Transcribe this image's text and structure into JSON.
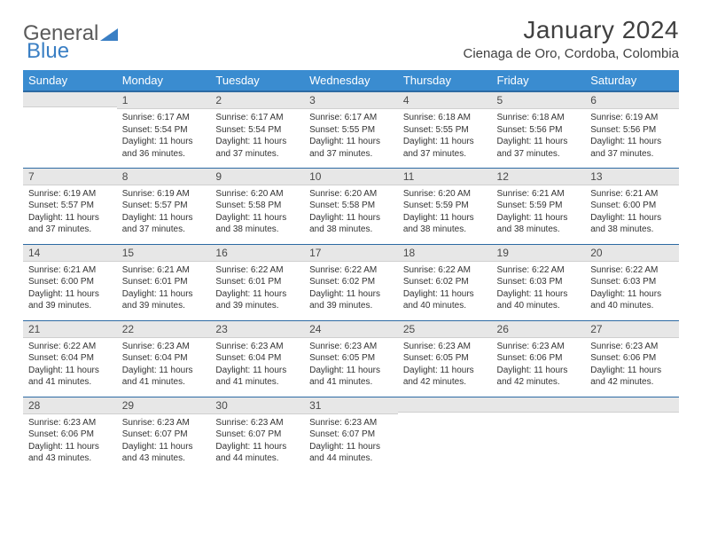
{
  "logo": {
    "text1": "General",
    "text2": "Blue"
  },
  "title": "January 2024",
  "location": "Cienaga de Oro, Cordoba, Colombia",
  "colors": {
    "header_bg": "#3a8cd0",
    "header_text": "#ffffff",
    "rule": "#2d6aa3",
    "daynum_bg": "#e7e7e7",
    "body_text": "#333333",
    "logo_gray": "#5a5a5a",
    "logo_blue": "#3a7fc4"
  },
  "weekdays": [
    "Sunday",
    "Monday",
    "Tuesday",
    "Wednesday",
    "Thursday",
    "Friday",
    "Saturday"
  ],
  "grid": [
    [
      null,
      {
        "n": "1",
        "sr": "6:17 AM",
        "ss": "5:54 PM",
        "dl": "11 hours and 36 minutes."
      },
      {
        "n": "2",
        "sr": "6:17 AM",
        "ss": "5:54 PM",
        "dl": "11 hours and 37 minutes."
      },
      {
        "n": "3",
        "sr": "6:17 AM",
        "ss": "5:55 PM",
        "dl": "11 hours and 37 minutes."
      },
      {
        "n": "4",
        "sr": "6:18 AM",
        "ss": "5:55 PM",
        "dl": "11 hours and 37 minutes."
      },
      {
        "n": "5",
        "sr": "6:18 AM",
        "ss": "5:56 PM",
        "dl": "11 hours and 37 minutes."
      },
      {
        "n": "6",
        "sr": "6:19 AM",
        "ss": "5:56 PM",
        "dl": "11 hours and 37 minutes."
      }
    ],
    [
      {
        "n": "7",
        "sr": "6:19 AM",
        "ss": "5:57 PM",
        "dl": "11 hours and 37 minutes."
      },
      {
        "n": "8",
        "sr": "6:19 AM",
        "ss": "5:57 PM",
        "dl": "11 hours and 37 minutes."
      },
      {
        "n": "9",
        "sr": "6:20 AM",
        "ss": "5:58 PM",
        "dl": "11 hours and 38 minutes."
      },
      {
        "n": "10",
        "sr": "6:20 AM",
        "ss": "5:58 PM",
        "dl": "11 hours and 38 minutes."
      },
      {
        "n": "11",
        "sr": "6:20 AM",
        "ss": "5:59 PM",
        "dl": "11 hours and 38 minutes."
      },
      {
        "n": "12",
        "sr": "6:21 AM",
        "ss": "5:59 PM",
        "dl": "11 hours and 38 minutes."
      },
      {
        "n": "13",
        "sr": "6:21 AM",
        "ss": "6:00 PM",
        "dl": "11 hours and 38 minutes."
      }
    ],
    [
      {
        "n": "14",
        "sr": "6:21 AM",
        "ss": "6:00 PM",
        "dl": "11 hours and 39 minutes."
      },
      {
        "n": "15",
        "sr": "6:21 AM",
        "ss": "6:01 PM",
        "dl": "11 hours and 39 minutes."
      },
      {
        "n": "16",
        "sr": "6:22 AM",
        "ss": "6:01 PM",
        "dl": "11 hours and 39 minutes."
      },
      {
        "n": "17",
        "sr": "6:22 AM",
        "ss": "6:02 PM",
        "dl": "11 hours and 39 minutes."
      },
      {
        "n": "18",
        "sr": "6:22 AM",
        "ss": "6:02 PM",
        "dl": "11 hours and 40 minutes."
      },
      {
        "n": "19",
        "sr": "6:22 AM",
        "ss": "6:03 PM",
        "dl": "11 hours and 40 minutes."
      },
      {
        "n": "20",
        "sr": "6:22 AM",
        "ss": "6:03 PM",
        "dl": "11 hours and 40 minutes."
      }
    ],
    [
      {
        "n": "21",
        "sr": "6:22 AM",
        "ss": "6:04 PM",
        "dl": "11 hours and 41 minutes."
      },
      {
        "n": "22",
        "sr": "6:23 AM",
        "ss": "6:04 PM",
        "dl": "11 hours and 41 minutes."
      },
      {
        "n": "23",
        "sr": "6:23 AM",
        "ss": "6:04 PM",
        "dl": "11 hours and 41 minutes."
      },
      {
        "n": "24",
        "sr": "6:23 AM",
        "ss": "6:05 PM",
        "dl": "11 hours and 41 minutes."
      },
      {
        "n": "25",
        "sr": "6:23 AM",
        "ss": "6:05 PM",
        "dl": "11 hours and 42 minutes."
      },
      {
        "n": "26",
        "sr": "6:23 AM",
        "ss": "6:06 PM",
        "dl": "11 hours and 42 minutes."
      },
      {
        "n": "27",
        "sr": "6:23 AM",
        "ss": "6:06 PM",
        "dl": "11 hours and 42 minutes."
      }
    ],
    [
      {
        "n": "28",
        "sr": "6:23 AM",
        "ss": "6:06 PM",
        "dl": "11 hours and 43 minutes."
      },
      {
        "n": "29",
        "sr": "6:23 AM",
        "ss": "6:07 PM",
        "dl": "11 hours and 43 minutes."
      },
      {
        "n": "30",
        "sr": "6:23 AM",
        "ss": "6:07 PM",
        "dl": "11 hours and 44 minutes."
      },
      {
        "n": "31",
        "sr": "6:23 AM",
        "ss": "6:07 PM",
        "dl": "11 hours and 44 minutes."
      },
      null,
      null,
      null
    ]
  ],
  "labels": {
    "sunrise": "Sunrise:",
    "sunset": "Sunset:",
    "daylight": "Daylight:"
  }
}
